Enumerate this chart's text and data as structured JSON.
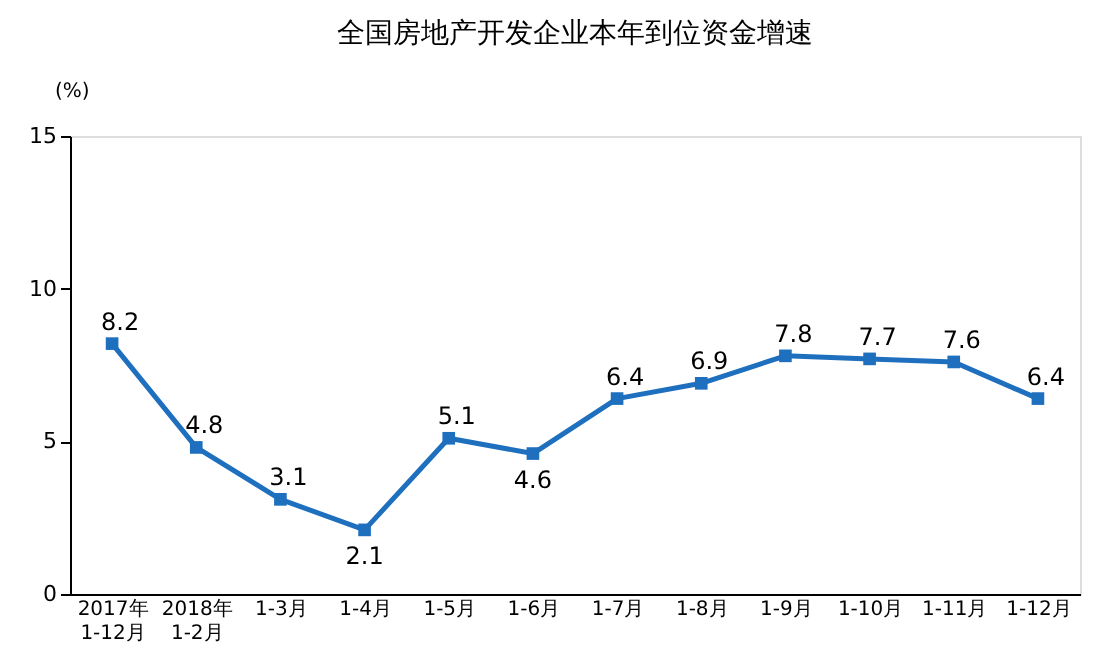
{
  "chart_data": {
    "type": "line",
    "title": "全国房地产开发企业本年到位资金增速",
    "ylabel": "(%)",
    "categories": [
      "2017年\n1-12月",
      "2018年\n1-2月",
      "1-3月",
      "1-4月",
      "1-5月",
      "1-6月",
      "1-7月",
      "1-8月",
      "1-9月",
      "1-10月",
      "1-11月",
      "1-12月"
    ],
    "series": [
      {
        "color": "#1f6fbf",
        "values": [
          8.2,
          4.8,
          3.1,
          2.1,
          5.1,
          4.6,
          6.4,
          6.9,
          7.8,
          7.7,
          7.6,
          6.4
        ]
      }
    ],
    "ylim": [
      0,
      15
    ],
    "yticks": [
      0,
      5,
      10,
      15
    ],
    "marker": "square",
    "line_style": "solid",
    "data_labels": true,
    "grid": false
  }
}
